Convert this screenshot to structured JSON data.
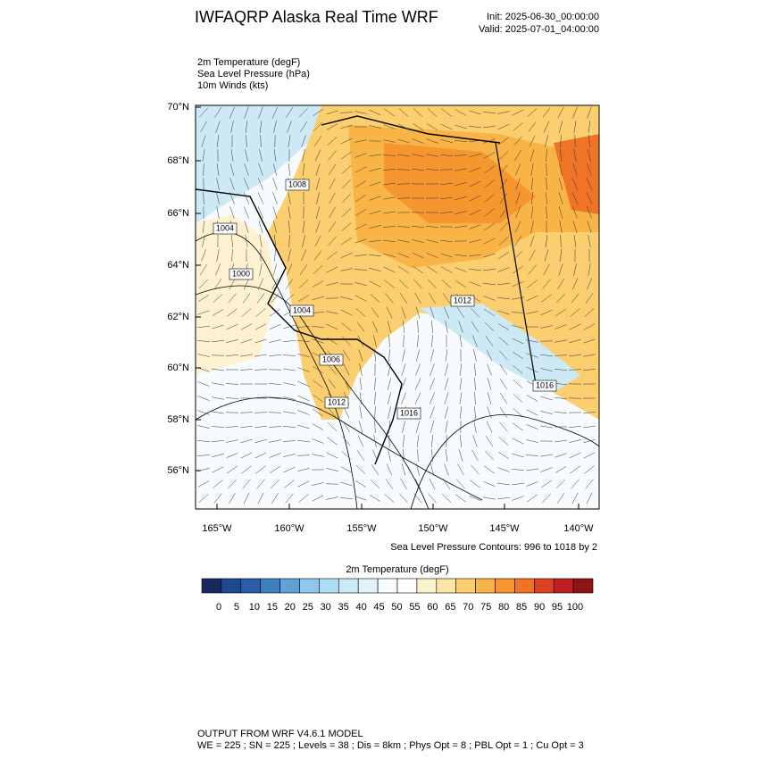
{
  "header": {
    "title": "IWFAQRP Alaska Real Time WRF",
    "init": "Init: 2025-06-30_00:00:00",
    "valid": "Valid: 2025-07-01_04:00:00",
    "fields": [
      "2m Temperature   (degF)",
      "Sea Level Pressure   (hPa)",
      "10m Winds   (kts)"
    ]
  },
  "map": {
    "lat_labels": [
      "70°N",
      "68°N",
      "66°N",
      "64°N",
      "62°N",
      "60°N",
      "58°N",
      "56°N"
    ],
    "lon_labels": [
      "165°W",
      "160°W",
      "155°W",
      "150°W",
      "145°W",
      "140°W"
    ],
    "contour_labels": [
      "1008",
      "1004",
      "1000",
      "1004",
      "1006",
      "1012",
      "1012",
      "1016",
      "1016"
    ],
    "contour_note": "Sea Level Pressure Contours: 996 to 1018 by 2"
  },
  "colorbar": {
    "title": "2m Temperature  (degF)",
    "ticks": [
      0,
      5,
      10,
      15,
      20,
      25,
      30,
      35,
      40,
      45,
      50,
      55,
      60,
      65,
      70,
      75,
      80,
      85,
      90,
      95,
      100
    ],
    "colors": [
      "#172a5e",
      "#1e4890",
      "#2a5fa8",
      "#3e7fc0",
      "#5fa3d8",
      "#8dc7ec",
      "#b0dcf3",
      "#cde9f6",
      "#e4f3fa",
      "#f7fbfd",
      "#ffffff",
      "#fef1d0",
      "#fde5a3",
      "#fbcf6f",
      "#f9b447",
      "#f6962f",
      "#ef7425",
      "#db4224",
      "#bf1f25",
      "#8e1418"
    ]
  },
  "footer": {
    "line1": "OUTPUT FROM WRF V4.6.1 MODEL",
    "line2": "WE = 225 ; SN = 225 ; Levels = 38 ; Dis = 8km ; Phys Opt = 8 ; PBL Opt = 1 ; Cu Opt = 3"
  }
}
